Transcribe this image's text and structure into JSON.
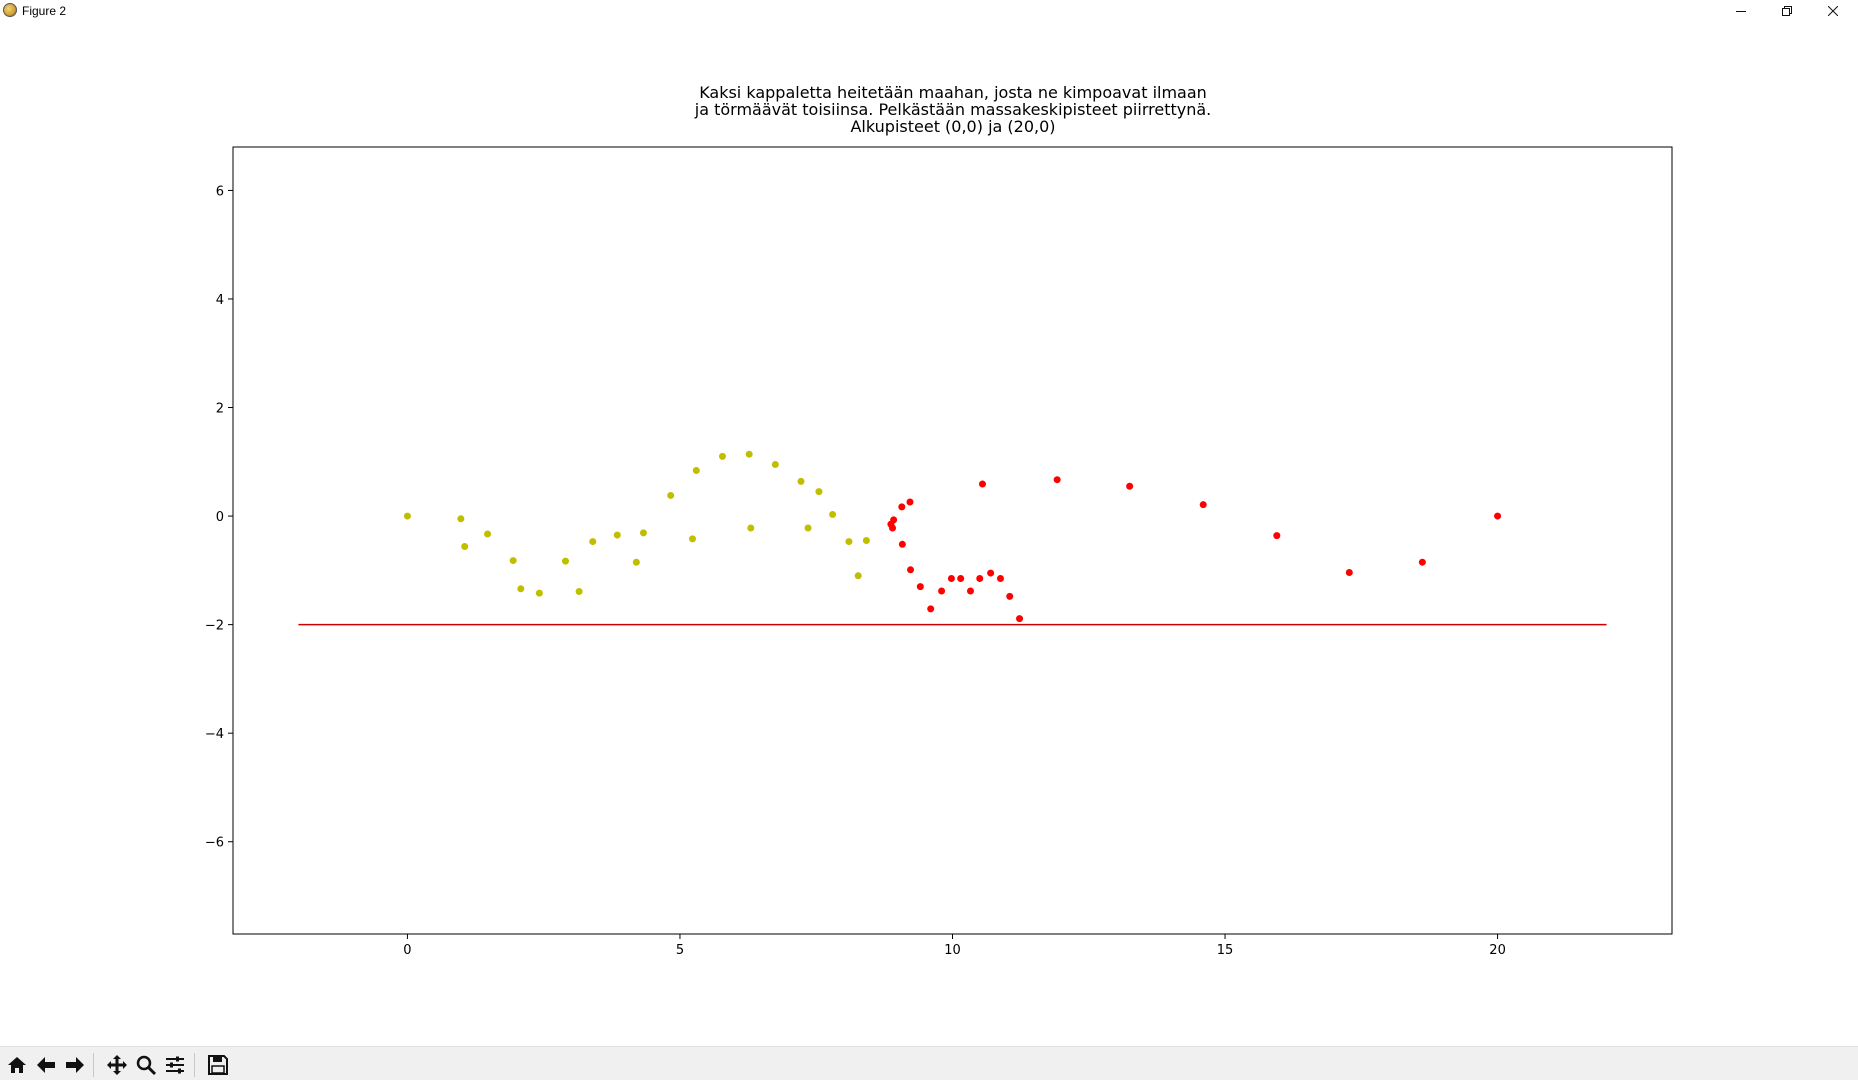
{
  "window": {
    "title": "Figure 2",
    "icon": "matplotlib-icon",
    "controls": [
      "minimize-icon",
      "restore-icon",
      "close-icon"
    ]
  },
  "toolbar": {
    "buttons": [
      "home-icon",
      "back-icon",
      "forward-icon",
      "pan-icon",
      "zoom-icon",
      "configure-subplots-icon",
      "save-icon"
    ]
  },
  "chart_data": {
    "type": "scatter",
    "title_lines": [
      "Kaksi kappaletta heitetään maahan, josta ne kimpoavat ilmaan",
      "ja törmäävät toisiinsa. Pelkästään massakeskipisteet piirrettynä.",
      "Alkupisteet (0,0) ja (20,0)"
    ],
    "xlabel": "",
    "ylabel": "",
    "xlim": [
      -3.2,
      23.2
    ],
    "ylim": [
      -7.7,
      6.8
    ],
    "x_ticks": [
      0,
      5,
      10,
      15,
      20
    ],
    "x_tick_labels": [
      "0",
      "5",
      "10",
      "15",
      "20"
    ],
    "y_ticks": [
      6,
      4,
      2,
      0,
      -2,
      -4,
      -6
    ],
    "y_tick_labels": [
      "6",
      "4",
      "2",
      "0",
      "−2",
      "−4",
      "−6"
    ],
    "grid": false,
    "ground_line": {
      "x": [
        -2,
        22
      ],
      "y": [
        -2,
        -2
      ],
      "color": "#cc0000"
    },
    "series": [
      {
        "color": "#bfbf00",
        "points": [
          [
            0.0,
            0.0
          ],
          [
            0.98,
            -0.05
          ],
          [
            1.05,
            -0.56
          ],
          [
            1.47,
            -0.33
          ],
          [
            1.94,
            -0.82
          ],
          [
            2.08,
            -1.34
          ],
          [
            2.42,
            -1.42
          ],
          [
            2.9,
            -0.83
          ],
          [
            3.15,
            -1.39
          ],
          [
            3.4,
            -0.47
          ],
          [
            3.85,
            -0.35
          ],
          [
            4.2,
            -0.85
          ],
          [
            4.33,
            -0.31
          ],
          [
            4.83,
            0.38
          ],
          [
            5.23,
            -0.42
          ],
          [
            5.3,
            0.84
          ],
          [
            5.78,
            1.1
          ],
          [
            6.27,
            1.14
          ],
          [
            6.3,
            -0.22
          ],
          [
            6.75,
            0.95
          ],
          [
            7.22,
            0.64
          ],
          [
            7.35,
            -0.22
          ],
          [
            7.55,
            0.45
          ],
          [
            7.8,
            0.03
          ],
          [
            8.1,
            -0.47
          ],
          [
            8.27,
            -1.1
          ],
          [
            8.42,
            -0.45
          ]
        ]
      },
      {
        "color": "#ff0000",
        "points": [
          [
            20.0,
            0.0
          ],
          [
            18.62,
            -0.85
          ],
          [
            17.28,
            -1.04
          ],
          [
            15.95,
            -0.36
          ],
          [
            14.6,
            0.21
          ],
          [
            13.25,
            0.55
          ],
          [
            11.92,
            0.67
          ],
          [
            10.55,
            0.59
          ],
          [
            9.22,
            0.26
          ],
          [
            9.07,
            0.17
          ],
          [
            8.92,
            -0.07
          ],
          [
            8.87,
            -0.15
          ],
          [
            8.9,
            -0.22
          ],
          [
            9.08,
            -0.52
          ],
          [
            9.23,
            -0.99
          ],
          [
            9.41,
            -1.3
          ],
          [
            9.6,
            -1.71
          ],
          [
            9.8,
            -1.38
          ],
          [
            9.98,
            -1.15
          ],
          [
            10.15,
            -1.15
          ],
          [
            10.33,
            -1.38
          ],
          [
            10.5,
            -1.15
          ],
          [
            10.7,
            -1.05
          ],
          [
            10.88,
            -1.15
          ],
          [
            11.05,
            -1.48
          ],
          [
            11.23,
            -1.89
          ]
        ]
      }
    ]
  }
}
